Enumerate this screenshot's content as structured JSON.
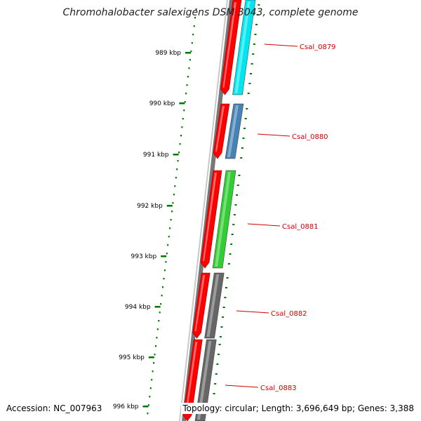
{
  "title": "Chromohalobacter salexigens DSM 3043, complete genome",
  "footer": {
    "accession": "Accession: NC_007963",
    "topology": "Topology: circular; Length: 3,696,649 bp; Genes: 3,388"
  },
  "colors": {
    "backbone": "#808080",
    "ruler_ticks": "#007700",
    "forward_cds": "#ff0000",
    "label": "#cc0000"
  },
  "ruler_labels": [
    "989 kbp",
    "990 kbp",
    "991 kbp",
    "992 kbp",
    "993 kbp",
    "994 kbp",
    "995 kbp",
    "996 kbp"
  ],
  "genes": [
    {
      "label": "Csal_0879",
      "color": "#00e5ee"
    },
    {
      "label": "Csal_0880",
      "color": "#4682b4"
    },
    {
      "label": "Csal_0881",
      "color": "#32cd32"
    },
    {
      "label": "Csal_0882",
      "color": "#666666"
    },
    {
      "label": "Csal_0883",
      "color": "#666666"
    }
  ]
}
